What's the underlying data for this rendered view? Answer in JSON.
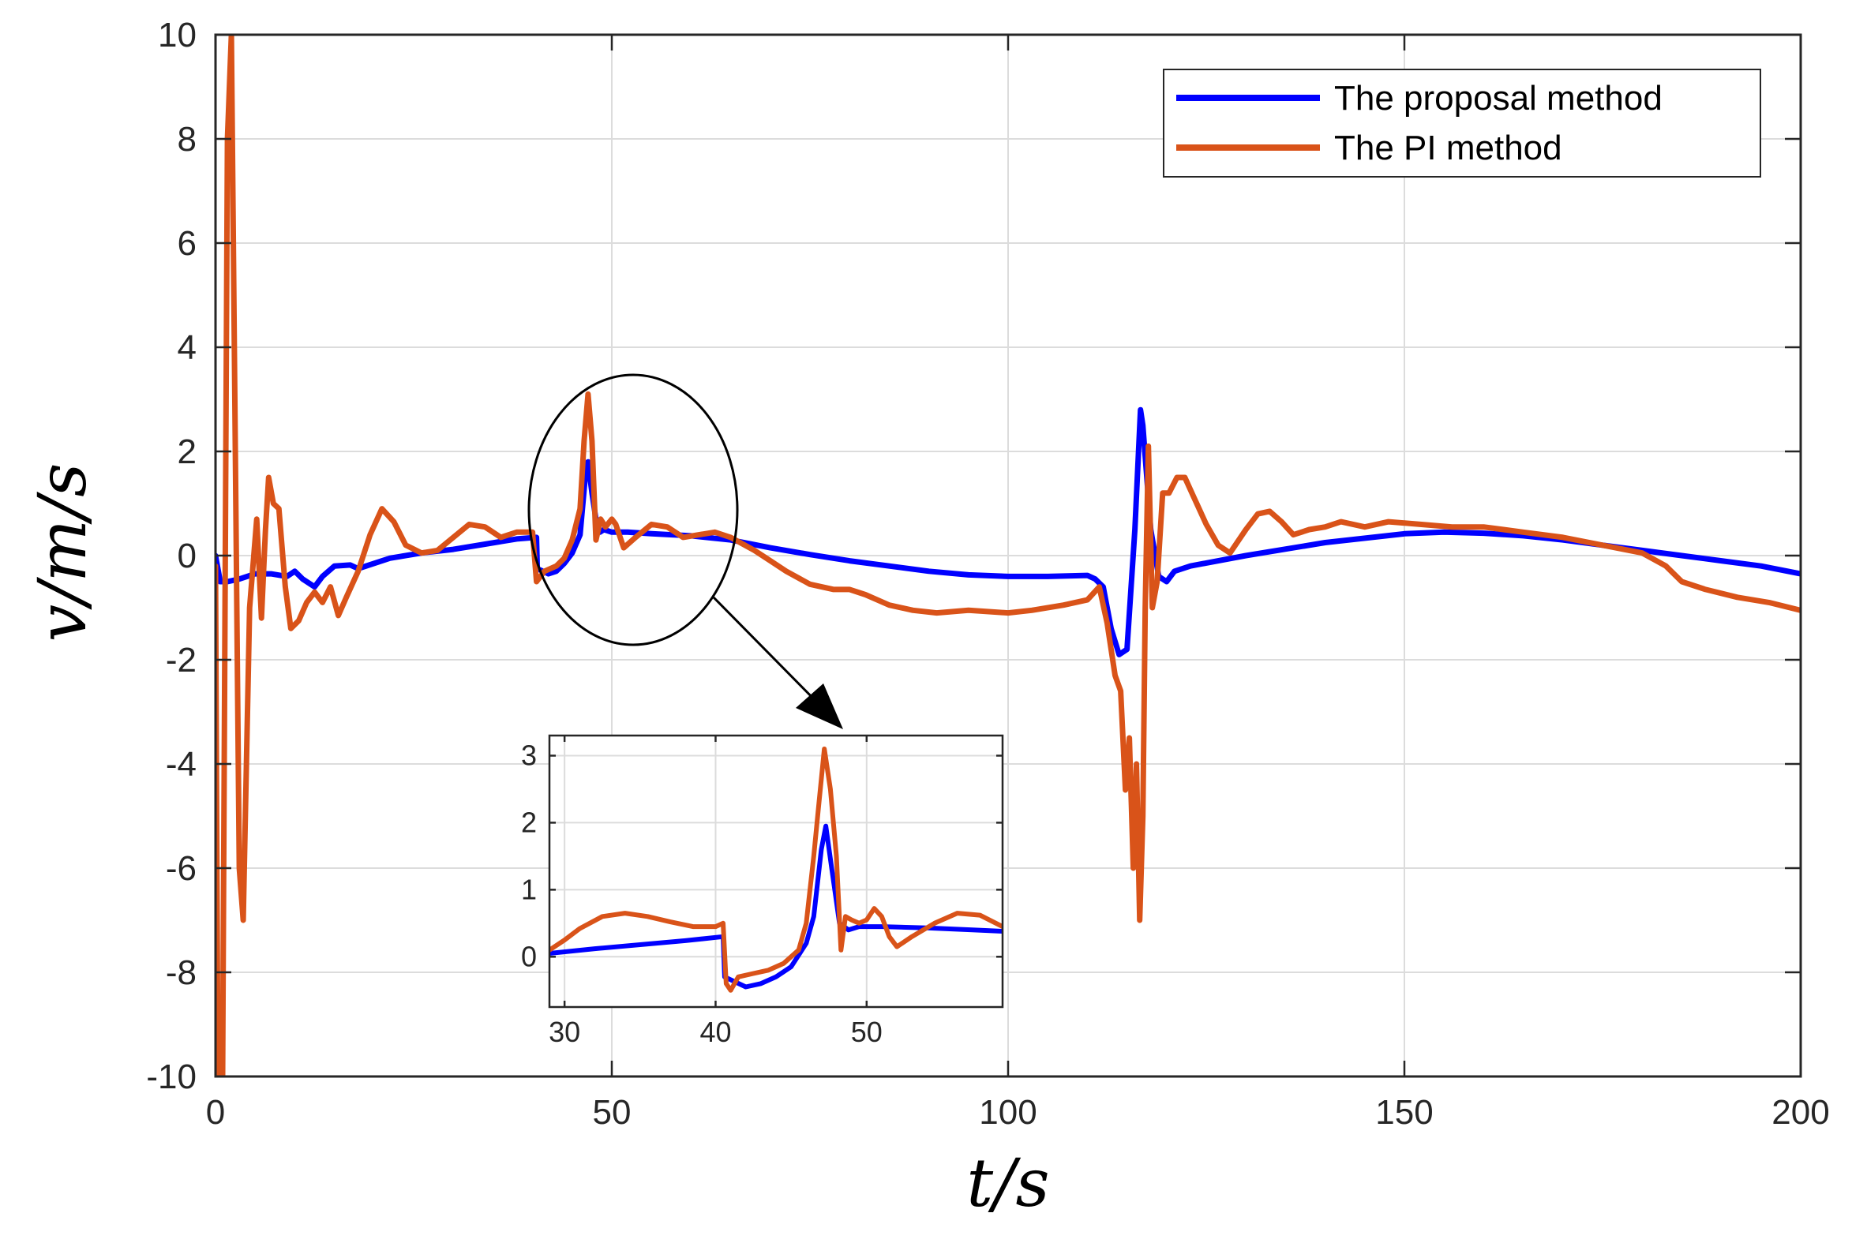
{
  "chart_data": [
    {
      "type": "line",
      "title": "",
      "xlabel": "t/s",
      "ylabel": "v/m/s",
      "xlim": [
        0,
        200
      ],
      "ylim": [
        -10,
        10
      ],
      "xticks": [
        0,
        50,
        100,
        150,
        200
      ],
      "yticks": [
        -10,
        -8,
        -6,
        -4,
        -2,
        0,
        2,
        4,
        6,
        8,
        10
      ],
      "grid": true,
      "legend": "top-right",
      "colors": {
        "proposal": "#0000ff",
        "pi": "#d95319",
        "grid": "#dcdcdc",
        "axis": "#262626"
      },
      "series": [
        {
          "name": "The proposal method",
          "color": "#0000ff",
          "points": [
            [
              0,
              0
            ],
            [
              0.6,
              -0.5
            ],
            [
              1.5,
              -0.5
            ],
            [
              3,
              -0.45
            ],
            [
              5,
              -0.35
            ],
            [
              7,
              -0.35
            ],
            [
              9,
              -0.4
            ],
            [
              10,
              -0.3
            ],
            [
              11,
              -0.45
            ],
            [
              12.5,
              -0.6
            ],
            [
              13.5,
              -0.4
            ],
            [
              15,
              -0.2
            ],
            [
              17,
              -0.18
            ],
            [
              18,
              -0.25
            ],
            [
              22,
              -0.05
            ],
            [
              26,
              0.05
            ],
            [
              30,
              0.12
            ],
            [
              34,
              0.22
            ],
            [
              38,
              0.32
            ],
            [
              40.5,
              0.35
            ],
            [
              40.6,
              -0.25
            ],
            [
              42,
              -0.35
            ],
            [
              43,
              -0.3
            ],
            [
              44,
              -0.15
            ],
            [
              45,
              0.05
            ],
            [
              46,
              0.4
            ],
            [
              46.7,
              1.6
            ],
            [
              47,
              1.8
            ],
            [
              47.5,
              1.2
            ],
            [
              48,
              0.7
            ],
            [
              48.5,
              0.45
            ],
            [
              49,
              0.5
            ],
            [
              50,
              0.45
            ],
            [
              52,
              0.45
            ],
            [
              55,
              0.42
            ],
            [
              60,
              0.38
            ],
            [
              65,
              0.3
            ],
            [
              70,
              0.15
            ],
            [
              75,
              0.02
            ],
            [
              80,
              -0.1
            ],
            [
              85,
              -0.2
            ],
            [
              90,
              -0.3
            ],
            [
              95,
              -0.37
            ],
            [
              100,
              -0.4
            ],
            [
              105,
              -0.4
            ],
            [
              110,
              -0.38
            ],
            [
              111,
              -0.45
            ],
            [
              112,
              -0.6
            ],
            [
              113,
              -1.4
            ],
            [
              114,
              -1.9
            ],
            [
              115,
              -1.8
            ],
            [
              116,
              0.5
            ],
            [
              116.7,
              2.8
            ],
            [
              117,
              2.5
            ],
            [
              118,
              0.5
            ],
            [
              119,
              -0.4
            ],
            [
              120,
              -0.5
            ],
            [
              121,
              -0.3
            ],
            [
              123,
              -0.2
            ],
            [
              130,
              0
            ],
            [
              140,
              0.25
            ],
            [
              150,
              0.42
            ],
            [
              155,
              0.45
            ],
            [
              160,
              0.43
            ],
            [
              165,
              0.38
            ],
            [
              170,
              0.3
            ],
            [
              175,
              0.2
            ],
            [
              180,
              0.1
            ],
            [
              185,
              0
            ],
            [
              190,
              -0.1
            ],
            [
              195,
              -0.2
            ],
            [
              200,
              -0.35
            ]
          ]
        },
        {
          "name": "The PI method",
          "color": "#d95319",
          "points": [
            [
              0,
              -0.2
            ],
            [
              0.3,
              -10
            ],
            [
              0.9,
              -10
            ],
            [
              1.5,
              8
            ],
            [
              2,
              10
            ],
            [
              2.5,
              2
            ],
            [
              3,
              -6
            ],
            [
              3.5,
              -7
            ],
            [
              4.3,
              -1
            ],
            [
              5.2,
              0.7
            ],
            [
              5.8,
              -1.2
            ],
            [
              6.3,
              0.5
            ],
            [
              6.7,
              1.5
            ],
            [
              7.3,
              1
            ],
            [
              8,
              0.9
            ],
            [
              8.8,
              -0.6
            ],
            [
              9.5,
              -1.4
            ],
            [
              10.5,
              -1.25
            ],
            [
              11.5,
              -0.9
            ],
            [
              12.5,
              -0.7
            ],
            [
              13.5,
              -0.9
            ],
            [
              14.5,
              -0.6
            ],
            [
              15.5,
              -1.15
            ],
            [
              16.5,
              -0.8
            ],
            [
              18,
              -0.3
            ],
            [
              19.5,
              0.4
            ],
            [
              21,
              0.9
            ],
            [
              22.5,
              0.65
            ],
            [
              24,
              0.2
            ],
            [
              26,
              0.05
            ],
            [
              28,
              0.1
            ],
            [
              30,
              0.35
            ],
            [
              32,
              0.6
            ],
            [
              34,
              0.55
            ],
            [
              36,
              0.35
            ],
            [
              38,
              0.45
            ],
            [
              40,
              0.45
            ],
            [
              40.5,
              -0.5
            ],
            [
              41.5,
              -0.3
            ],
            [
              43,
              -0.2
            ],
            [
              44,
              -0.05
            ],
            [
              45,
              0.3
            ],
            [
              46,
              0.9
            ],
            [
              46.5,
              2.2
            ],
            [
              47,
              3.1
            ],
            [
              47.5,
              2.2
            ],
            [
              48,
              0.3
            ],
            [
              48.6,
              0.7
            ],
            [
              49.2,
              0.55
            ],
            [
              50,
              0.7
            ],
            [
              50.5,
              0.6
            ],
            [
              51.5,
              0.15
            ],
            [
              53,
              0.35
            ],
            [
              55,
              0.6
            ],
            [
              57,
              0.55
            ],
            [
              59,
              0.35
            ],
            [
              61,
              0.4
            ],
            [
              63,
              0.45
            ],
            [
              65,
              0.35
            ],
            [
              68,
              0.1
            ],
            [
              70,
              -0.1
            ],
            [
              72,
              -0.3
            ],
            [
              75,
              -0.55
            ],
            [
              78,
              -0.65
            ],
            [
              80,
              -0.65
            ],
            [
              82,
              -0.75
            ],
            [
              85,
              -0.95
            ],
            [
              88,
              -1.05
            ],
            [
              91,
              -1.1
            ],
            [
              95,
              -1.05
            ],
            [
              100,
              -1.1
            ],
            [
              103,
              -1.05
            ],
            [
              107,
              -0.95
            ],
            [
              110,
              -0.85
            ],
            [
              111.5,
              -0.6
            ],
            [
              112.5,
              -1.3
            ],
            [
              113.5,
              -2.3
            ],
            [
              114.2,
              -2.6
            ],
            [
              114.8,
              -4.5
            ],
            [
              115.3,
              -3.5
            ],
            [
              115.8,
              -6
            ],
            [
              116.2,
              -4
            ],
            [
              116.6,
              -7
            ],
            [
              117,
              -5
            ],
            [
              117.3,
              -1
            ],
            [
              117.7,
              2.1
            ],
            [
              118.2,
              -1
            ],
            [
              118.8,
              -0.5
            ],
            [
              119.5,
              1.2
            ],
            [
              120.3,
              1.2
            ],
            [
              121.3,
              1.5
            ],
            [
              122.3,
              1.5
            ],
            [
              123.5,
              1.1
            ],
            [
              125,
              0.6
            ],
            [
              126.5,
              0.2
            ],
            [
              128,
              0.05
            ],
            [
              130,
              0.5
            ],
            [
              131.5,
              0.8
            ],
            [
              133,
              0.85
            ],
            [
              134.5,
              0.65
            ],
            [
              136,
              0.4
            ],
            [
              138,
              0.5
            ],
            [
              140,
              0.55
            ],
            [
              142,
              0.65
            ],
            [
              145,
              0.55
            ],
            [
              148,
              0.65
            ],
            [
              152,
              0.6
            ],
            [
              156,
              0.55
            ],
            [
              160,
              0.55
            ],
            [
              165,
              0.45
            ],
            [
              170,
              0.35
            ],
            [
              175,
              0.2
            ],
            [
              180,
              0.05
            ],
            [
              183,
              -0.2
            ],
            [
              185,
              -0.5
            ],
            [
              188,
              -0.65
            ],
            [
              192,
              -0.8
            ],
            [
              196,
              -0.9
            ],
            [
              200,
              -1.05
            ]
          ]
        }
      ]
    },
    {
      "type": "line",
      "title": "",
      "xlabel": "",
      "ylabel": "",
      "xlim": [
        29,
        59
      ],
      "ylim": [
        -0.75,
        3.3
      ],
      "xticks": [
        30,
        40,
        50
      ],
      "yticks": [
        0,
        1,
        2,
        3
      ],
      "grid": true,
      "series": [
        {
          "name": "The proposal method",
          "color": "#0000ff",
          "points": [
            [
              29,
              0.05
            ],
            [
              32,
              0.12
            ],
            [
              35,
              0.18
            ],
            [
              38,
              0.24
            ],
            [
              40.5,
              0.3
            ],
            [
              40.6,
              -0.3
            ],
            [
              42,
              -0.45
            ],
            [
              43,
              -0.4
            ],
            [
              44,
              -0.3
            ],
            [
              45,
              -0.15
            ],
            [
              46,
              0.2
            ],
            [
              46.5,
              0.6
            ],
            [
              47,
              1.6
            ],
            [
              47.3,
              1.95
            ],
            [
              47.7,
              1.3
            ],
            [
              48.2,
              0.5
            ],
            [
              48.8,
              0.4
            ],
            [
              49.5,
              0.45
            ],
            [
              51,
              0.45
            ],
            [
              54,
              0.43
            ],
            [
              57,
              0.4
            ],
            [
              59,
              0.38
            ]
          ]
        },
        {
          "name": "The PI method",
          "color": "#d95319",
          "points": [
            [
              29,
              0.1
            ],
            [
              30,
              0.25
            ],
            [
              31,
              0.42
            ],
            [
              32.5,
              0.6
            ],
            [
              34,
              0.65
            ],
            [
              35.5,
              0.6
            ],
            [
              37,
              0.52
            ],
            [
              38.5,
              0.45
            ],
            [
              40,
              0.45
            ],
            [
              40.5,
              0.5
            ],
            [
              40.7,
              -0.4
            ],
            [
              41,
              -0.5
            ],
            [
              41.5,
              -0.3
            ],
            [
              42.5,
              -0.25
            ],
            [
              43.5,
              -0.2
            ],
            [
              44.5,
              -0.1
            ],
            [
              45.5,
              0.1
            ],
            [
              46,
              0.5
            ],
            [
              46.5,
              1.5
            ],
            [
              46.8,
              2.2
            ],
            [
              47.2,
              3.1
            ],
            [
              47.6,
              2.5
            ],
            [
              48,
              1.5
            ],
            [
              48.3,
              0.1
            ],
            [
              48.6,
              0.6
            ],
            [
              49,
              0.55
            ],
            [
              49.5,
              0.5
            ],
            [
              50,
              0.55
            ],
            [
              50.5,
              0.72
            ],
            [
              51,
              0.6
            ],
            [
              51.5,
              0.3
            ],
            [
              52,
              0.15
            ],
            [
              53,
              0.3
            ],
            [
              54.5,
              0.5
            ],
            [
              56,
              0.65
            ],
            [
              57.5,
              0.62
            ],
            [
              59,
              0.45
            ]
          ]
        }
      ]
    }
  ]
}
